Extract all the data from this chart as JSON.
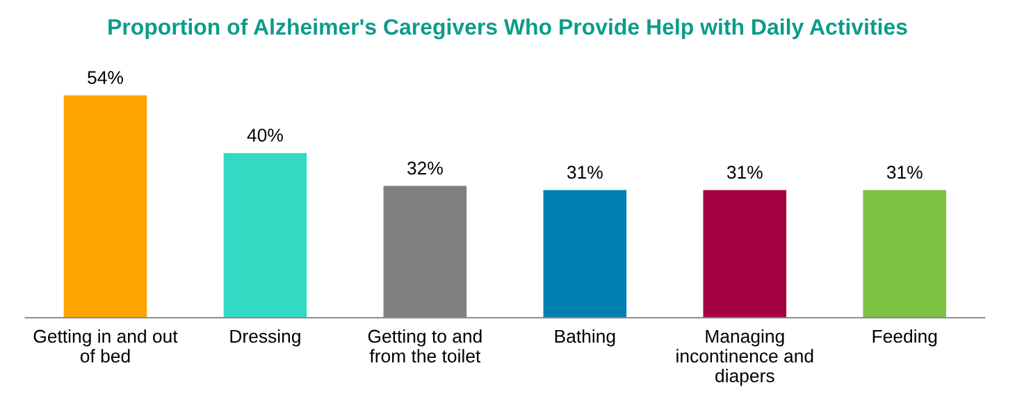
{
  "chart_data": {
    "type": "bar",
    "title": "Proportion of Alzheimer's Caregivers Who Provide Help with Daily Activities",
    "categories": [
      "Getting in and out\nof bed",
      "Dressing",
      "Getting to and\nfrom the toilet",
      "Bathing",
      "Managing\nincontinence and\ndiapers",
      "Feeding"
    ],
    "values": [
      54,
      40,
      32,
      31,
      31,
      31
    ],
    "value_labels": [
      "54%",
      "40%",
      "32%",
      "31%",
      "31%",
      "31%"
    ],
    "colors": [
      "#ffa300",
      "#33d9c3",
      "#808083",
      "#0080b2",
      "#a50044",
      "#7dc142"
    ],
    "grid": false,
    "legend": false
  }
}
